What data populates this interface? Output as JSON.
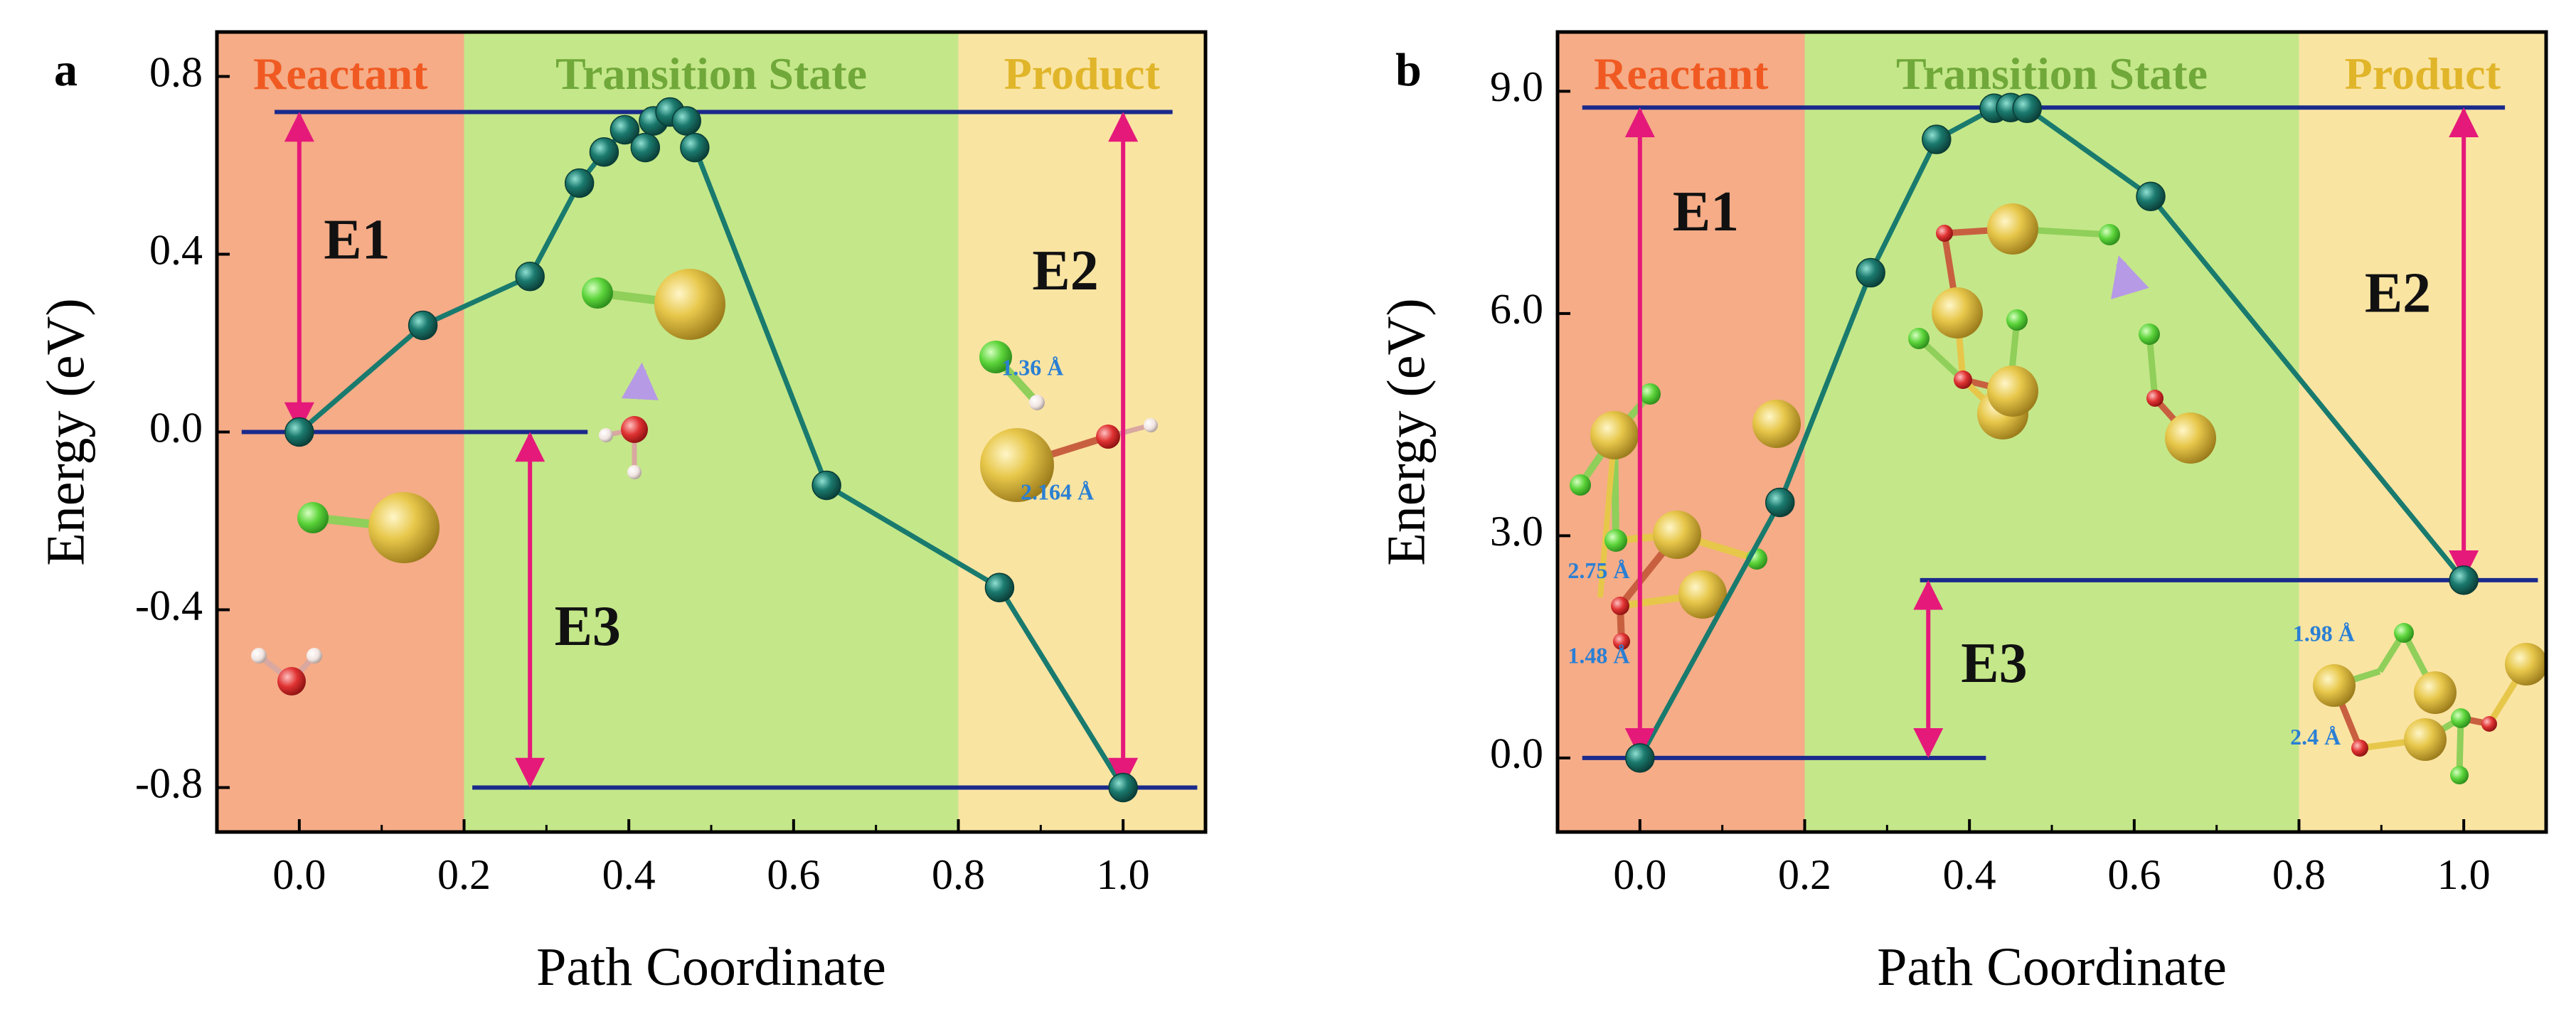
{
  "colors": {
    "reactant_bg": "#F5AC87",
    "transition_bg": "#C4E789",
    "product_bg": "#FAE4A2",
    "reactant_text": "#F05A22",
    "transition_text": "#70A83A",
    "product_text": "#E0B529",
    "path_line": "#197A6E",
    "point_fill": "#1B7A6E",
    "level_line": "#1A2A8C",
    "arrow": "#E5197A",
    "bond_text": "#2A7FD4",
    "au_atom": "#E7C74A",
    "cl_atom": "#5CD43A",
    "o_atom": "#E03232",
    "h_atom": "#F0E4E0"
  },
  "chart_data": [
    {
      "panel": "a",
      "type": "line",
      "xlabel": "Path Coordinate",
      "ylabel": "Energy (eV)",
      "xlim": [
        -0.1,
        1.1
      ],
      "ylim": [
        -0.9,
        0.9
      ],
      "xticks": [
        "0.0",
        "0.2",
        "0.4",
        "0.6",
        "0.8",
        "1.0"
      ],
      "yticks": [
        "0.8",
        "0.4",
        "0.0",
        "-0.4",
        "-0.8"
      ],
      "regions": [
        {
          "label": "Reactant",
          "from": -0.1,
          "to": 0.2
        },
        {
          "label": "Transition State",
          "from": 0.2,
          "to": 0.8
        },
        {
          "label": "Product",
          "from": 0.8,
          "to": 1.1
        }
      ],
      "points": [
        {
          "x": 0.0,
          "y": 0.0
        },
        {
          "x": 0.15,
          "y": 0.24
        },
        {
          "x": 0.28,
          "y": 0.35
        },
        {
          "x": 0.34,
          "y": 0.56
        },
        {
          "x": 0.37,
          "y": 0.63
        },
        {
          "x": 0.395,
          "y": 0.68
        },
        {
          "x": 0.42,
          "y": 0.64
        },
        {
          "x": 0.43,
          "y": 0.7
        },
        {
          "x": 0.45,
          "y": 0.72
        },
        {
          "x": 0.47,
          "y": 0.7
        },
        {
          "x": 0.48,
          "y": 0.64
        },
        {
          "x": 0.64,
          "y": -0.12
        },
        {
          "x": 0.85,
          "y": -0.35
        },
        {
          "x": 1.0,
          "y": -0.8
        }
      ],
      "levels": [
        {
          "y": 0.72,
          "from": -0.03,
          "to": 1.06
        },
        {
          "y": 0.0,
          "from": -0.07,
          "to": 0.35
        },
        {
          "y": -0.8,
          "from": 0.21,
          "to": 1.09
        }
      ],
      "energy_arrows": [
        {
          "label": "E1",
          "x": 0.0,
          "y1": 0.72,
          "y2": 0.0,
          "label_x": 0.07,
          "label_y": 0.42
        },
        {
          "label": "E2",
          "x": 1.0,
          "y1": 0.72,
          "y2": -0.8,
          "label_x": 0.93,
          "label_y": 0.35
        },
        {
          "label": "E3",
          "x": 0.28,
          "y1": 0.0,
          "y2": -0.8,
          "label_x": 0.35,
          "label_y": -0.45
        }
      ],
      "bond_labels": [
        {
          "text": "1.36 Å",
          "x": 0.89,
          "y": 0.14
        },
        {
          "text": "2.164 Å",
          "x": 0.92,
          "y": -0.14
        }
      ]
    },
    {
      "panel": "b",
      "type": "line",
      "xlabel": "Path Coordinate",
      "ylabel": "Energy (eV)",
      "xlim": [
        -0.1,
        1.1
      ],
      "ylim": [
        -1.0,
        9.8
      ],
      "xticks": [
        "0.0",
        "0.2",
        "0.4",
        "0.6",
        "0.8",
        "1.0"
      ],
      "yticks": [
        "9.0",
        "6.0",
        "3.0",
        "0.0"
      ],
      "regions": [
        {
          "label": "Reactant",
          "from": -0.1,
          "to": 0.2
        },
        {
          "label": "Transition State",
          "from": 0.2,
          "to": 0.8
        },
        {
          "label": "Product",
          "from": 0.8,
          "to": 1.1
        }
      ],
      "points": [
        {
          "x": 0.0,
          "y": 0.0
        },
        {
          "x": 0.17,
          "y": 3.45
        },
        {
          "x": 0.28,
          "y": 6.55
        },
        {
          "x": 0.36,
          "y": 8.35
        },
        {
          "x": 0.43,
          "y": 8.77
        },
        {
          "x": 0.45,
          "y": 8.78
        },
        {
          "x": 0.47,
          "y": 8.77
        },
        {
          "x": 0.62,
          "y": 7.58
        },
        {
          "x": 1.0,
          "y": 2.4
        }
      ],
      "levels": [
        {
          "y": 8.78,
          "from": -0.07,
          "to": 1.05
        },
        {
          "y": 2.4,
          "from": 0.34,
          "to": 1.09
        },
        {
          "y": 0.0,
          "from": -0.07,
          "to": 0.42
        }
      ],
      "energy_arrows": [
        {
          "label": "E1",
          "x": 0.0,
          "y1": 8.78,
          "y2": 0.0,
          "label_x": 0.08,
          "label_y": 7.3
        },
        {
          "label": "E2",
          "x": 1.0,
          "y1": 8.78,
          "y2": 2.4,
          "label_x": 0.92,
          "label_y": 6.2
        },
        {
          "label": "E3",
          "x": 0.35,
          "y1": 2.4,
          "y2": 0.0,
          "label_x": 0.43,
          "label_y": 1.2
        }
      ],
      "bond_labels": [
        {
          "text": "2.75 Å",
          "x": -0.05,
          "y": 2.5
        },
        {
          "text": "1.48 Å",
          "x": -0.05,
          "y": 1.35
        },
        {
          "text": "1.98 Å",
          "x": 0.83,
          "y": 1.65
        },
        {
          "text": "2.4 Å",
          "x": 0.82,
          "y": 0.25
        }
      ]
    }
  ]
}
